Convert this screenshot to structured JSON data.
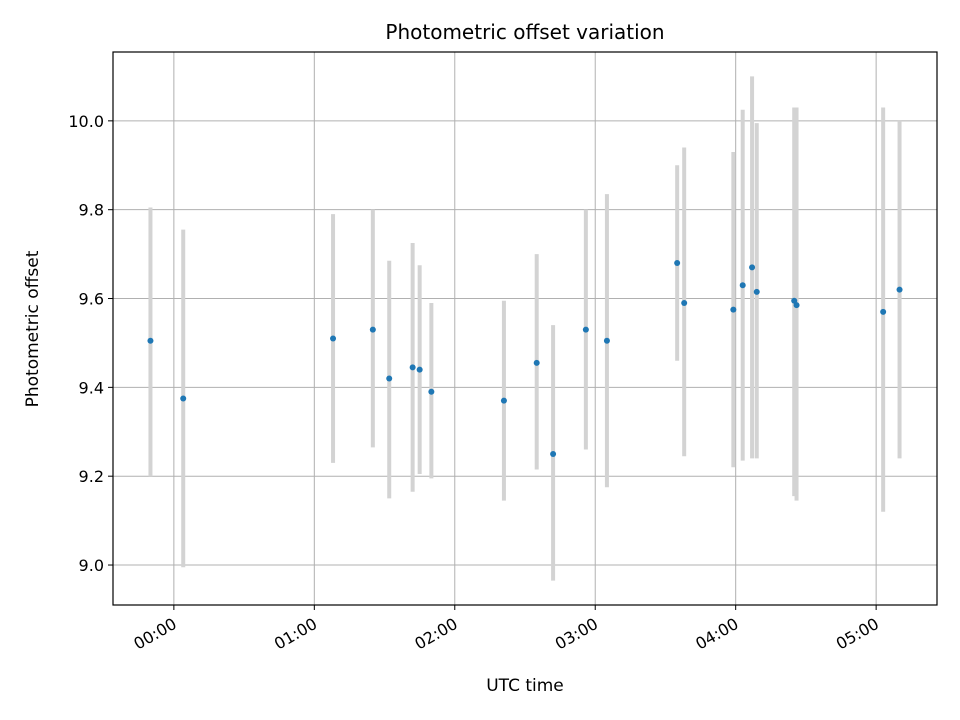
{
  "chart_data": {
    "type": "scatter",
    "title": "Photometric offset variation",
    "xlabel": "UTC time",
    "ylabel": "Photometric offset",
    "x_unit": "minutes_utc",
    "xlim": [
      -26,
      326
    ],
    "ylim": [
      8.91,
      10.155
    ],
    "x_ticks": [
      {
        "value": 0,
        "label": "00:00"
      },
      {
        "value": 60,
        "label": "01:00"
      },
      {
        "value": 120,
        "label": "02:00"
      },
      {
        "value": 180,
        "label": "03:00"
      },
      {
        "value": 240,
        "label": "04:00"
      },
      {
        "value": 300,
        "label": "05:00"
      }
    ],
    "y_ticks": [
      9.0,
      9.2,
      9.4,
      9.6,
      9.8,
      10.0
    ],
    "y_tick_labels": [
      "9.0",
      "9.2",
      "9.4",
      "9.6",
      "9.8",
      "10.0"
    ],
    "grid": true,
    "marker_color": "#1f77b4",
    "errorbar_color": "#d3d3d3",
    "points": [
      {
        "x": "23:50",
        "y": 9.505,
        "low": 9.2,
        "high": 9.805
      },
      {
        "x": "00:04",
        "y": 9.375,
        "low": 8.995,
        "high": 9.755
      },
      {
        "x": "01:08",
        "y": 9.51,
        "low": 9.23,
        "high": 9.79
      },
      {
        "x": "01:25",
        "y": 9.53,
        "low": 9.265,
        "high": 9.8
      },
      {
        "x": "01:32",
        "y": 9.42,
        "low": 9.15,
        "high": 9.685
      },
      {
        "x": "01:42",
        "y": 9.445,
        "low": 9.165,
        "high": 9.725
      },
      {
        "x": "01:45",
        "y": 9.44,
        "low": 9.205,
        "high": 9.675
      },
      {
        "x": "01:50",
        "y": 9.39,
        "low": 9.195,
        "high": 9.59
      },
      {
        "x": "02:21",
        "y": 9.37,
        "low": 9.145,
        "high": 9.595
      },
      {
        "x": "02:35",
        "y": 9.455,
        "low": 9.215,
        "high": 9.7
      },
      {
        "x": "02:42",
        "y": 9.25,
        "low": 8.965,
        "high": 9.54
      },
      {
        "x": "02:56",
        "y": 9.53,
        "low": 9.26,
        "high": 9.8
      },
      {
        "x": "03:05",
        "y": 9.505,
        "low": 9.175,
        "high": 9.835
      },
      {
        "x": "03:35",
        "y": 9.68,
        "low": 9.46,
        "high": 9.9
      },
      {
        "x": "03:38",
        "y": 9.59,
        "low": 9.245,
        "high": 9.94
      },
      {
        "x": "03:59",
        "y": 9.575,
        "low": 9.22,
        "high": 9.93
      },
      {
        "x": "04:03",
        "y": 9.63,
        "low": 9.235,
        "high": 10.025
      },
      {
        "x": "04:07",
        "y": 9.67,
        "low": 9.24,
        "high": 10.1
      },
      {
        "x": "04:09",
        "y": 9.615,
        "low": 9.24,
        "high": 9.995
      },
      {
        "x": "04:25",
        "y": 9.595,
        "low": 9.155,
        "high": 10.03
      },
      {
        "x": "04:26",
        "y": 9.585,
        "low": 9.145,
        "high": 10.03
      },
      {
        "x": "05:03",
        "y": 9.57,
        "low": 9.12,
        "high": 10.03
      },
      {
        "x": "05:10",
        "y": 9.62,
        "low": 9.24,
        "high": 10.0
      }
    ]
  }
}
